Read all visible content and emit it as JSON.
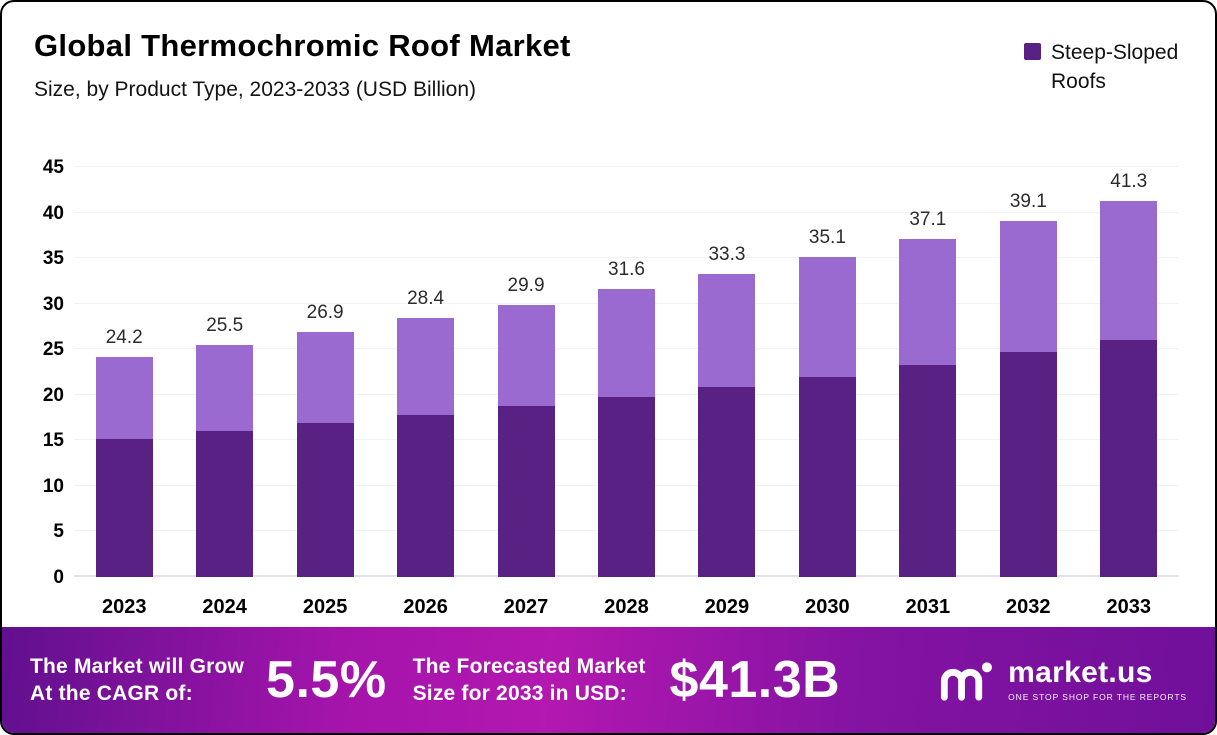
{
  "header": {
    "title": "Global Thermochromic Roof Market",
    "subtitle": "Size, by Product Type, 2023-2033 (USD Billion)"
  },
  "legend": {
    "label": "Steep-Sloped Roofs",
    "swatch_color": "#5a2185"
  },
  "chart_data": {
    "type": "bar",
    "stacked": true,
    "title": "Global Thermochromic Roof Market Size, by Product Type, 2023-2033 (USD Billion)",
    "categories": [
      "2023",
      "2024",
      "2025",
      "2026",
      "2027",
      "2028",
      "2029",
      "2030",
      "2031",
      "2032",
      "2033"
    ],
    "series": [
      {
        "name": "Steep-Sloped Roofs",
        "color": "#5a2185",
        "values": [
          15.2,
          16.0,
          16.9,
          17.8,
          18.8,
          19.8,
          20.9,
          22.0,
          23.3,
          24.7,
          26.0
        ]
      },
      {
        "name": "",
        "color": "#9b6ad0",
        "values": [
          9.0,
          9.5,
          10.0,
          10.6,
          11.1,
          11.8,
          12.4,
          13.1,
          13.8,
          14.4,
          15.3
        ]
      }
    ],
    "totals": [
      "24.2",
      "25.5",
      "26.9",
      "28.4",
      "29.9",
      "31.6",
      "33.3",
      "35.1",
      "37.1",
      "39.1",
      "41.3"
    ],
    "xlabel": "",
    "ylabel": "",
    "ylim": [
      0,
      45
    ],
    "ytick_step": 5,
    "grid": false,
    "legend_position": "top-right"
  },
  "banner": {
    "cagr_label_line1": "The Market will Grow",
    "cagr_label_line2": "At the CAGR of:",
    "cagr_value": "5.5%",
    "forecast_label_line1": "The Forecasted Market",
    "forecast_label_line2": "Size for 2033 in USD:",
    "forecast_value": "$41.3B",
    "brand": "market.us",
    "brand_tagline": "ONE STOP SHOP FOR THE REPORTS"
  },
  "colors": {
    "bar_dark": "#5a2185",
    "bar_light": "#9b6ad0",
    "banner_gradient_left": "#61108f",
    "banner_gradient_mid": "#b318b0",
    "banner_gradient_right": "#70109a"
  }
}
